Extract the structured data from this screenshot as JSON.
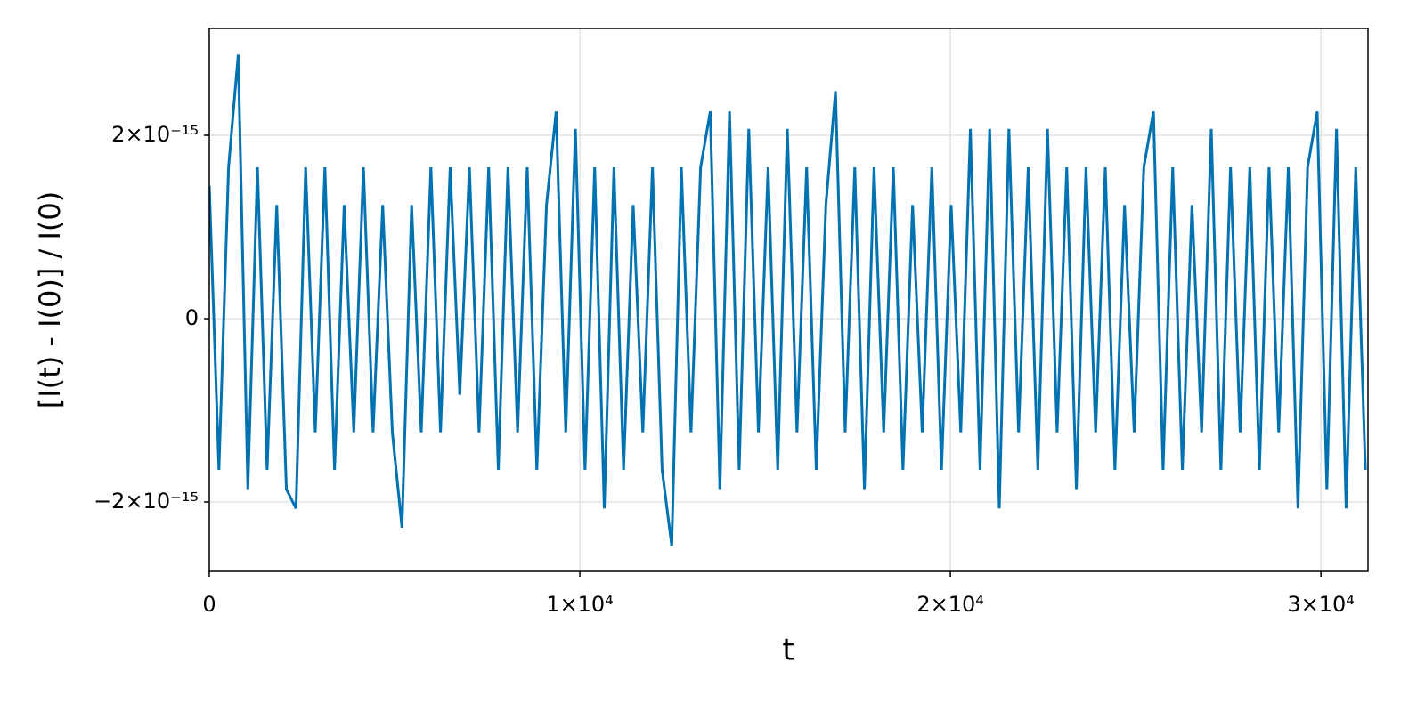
{
  "chart_data": {
    "type": "line",
    "x_label": "t",
    "y_label": "[I(t) - I(0)] / I(0)",
    "color": "#0072b2",
    "grid": true,
    "xlim": [
      0,
      31270
    ],
    "ylim": [
      -2.757e-15,
      3.165e-15
    ],
    "xticks": [
      0,
      {
        "value": 10000,
        "label": "1×10⁴"
      },
      {
        "value": 20000,
        "label": "2×10⁴"
      },
      {
        "value": 30000,
        "label": "3×10⁴"
      }
    ],
    "yticks": [
      {
        "value": -2e-15,
        "label": "−2×10⁻¹⁵"
      },
      0,
      {
        "value": 2e-15,
        "label": "2×10⁻¹⁵"
      }
    ],
    "x": [
      0,
      260,
      520,
      780,
      1040,
      1300,
      1560,
      1820,
      2080,
      2340,
      2600,
      2860,
      3120,
      3380,
      3640,
      3900,
      4160,
      4420,
      4680,
      4940,
      5200,
      5460,
      5720,
      5980,
      6240,
      6500,
      6760,
      7020,
      7280,
      7540,
      7800,
      8060,
      8320,
      8580,
      8840,
      9100,
      9360,
      9620,
      9880,
      10140,
      10400,
      10660,
      10920,
      11180,
      11440,
      11700,
      11960,
      12220,
      12480,
      12740,
      13000,
      13260,
      13520,
      13780,
      14040,
      14300,
      14560,
      14820,
      15080,
      15340,
      15600,
      15860,
      16120,
      16380,
      16640,
      16900,
      17160,
      17420,
      17680,
      17940,
      18200,
      18460,
      18720,
      18980,
      19240,
      19500,
      19760,
      20020,
      20280,
      20540,
      20800,
      21060,
      21320,
      21580,
      21840,
      22100,
      22360,
      22620,
      22880,
      23140,
      23400,
      23660,
      23920,
      24180,
      24440,
      24700,
      24960,
      25220,
      25480,
      25740,
      26000,
      26260,
      26520,
      26780,
      27040,
      27300,
      27560,
      27820,
      28080,
      28340,
      28600,
      28860,
      29120,
      29380,
      29640,
      29900,
      30160,
      30420,
      30680,
      30940,
      31200
    ],
    "values": [
      1.45e-15,
      -1.65e-15,
      1.65e-15,
      2.88e-15,
      -1.86e-15,
      1.65e-15,
      -1.65e-15,
      1.24e-15,
      -1.86e-15,
      -2.07e-15,
      1.65e-15,
      -1.24e-15,
      1.65e-15,
      -1.65e-15,
      1.24e-15,
      -1.24e-15,
      1.65e-15,
      -1.24e-15,
      1.24e-15,
      -1.24e-15,
      -2.28e-15,
      1.24e-15,
      -1.24e-15,
      1.65e-15,
      -1.24e-15,
      1.65e-15,
      -8.3e-16,
      1.65e-15,
      -1.24e-15,
      1.65e-15,
      -1.65e-15,
      1.65e-15,
      -1.24e-15,
      1.65e-15,
      -1.65e-15,
      1.24e-15,
      2.26e-15,
      -1.24e-15,
      2.07e-15,
      -1.65e-15,
      1.65e-15,
      -2.07e-15,
      1.65e-15,
      -1.65e-15,
      1.24e-15,
      -1.24e-15,
      1.65e-15,
      -1.65e-15,
      -2.48e-15,
      1.65e-15,
      -1.24e-15,
      1.65e-15,
      2.26e-15,
      -1.86e-15,
      2.26e-15,
      -1.65e-15,
      2.07e-15,
      -1.24e-15,
      1.65e-15,
      -1.65e-15,
      2.07e-15,
      -1.24e-15,
      1.65e-15,
      -1.65e-15,
      1.24e-15,
      2.48e-15,
      -1.24e-15,
      1.65e-15,
      -1.86e-15,
      1.65e-15,
      -1.24e-15,
      1.65e-15,
      -1.65e-15,
      1.24e-15,
      -1.24e-15,
      1.65e-15,
      -1.65e-15,
      1.24e-15,
      -1.24e-15,
      2.07e-15,
      -1.65e-15,
      2.07e-15,
      -2.07e-15,
      2.07e-15,
      -1.24e-15,
      1.65e-15,
      -1.65e-15,
      2.07e-15,
      -1.24e-15,
      1.65e-15,
      -1.86e-15,
      1.65e-15,
      -1.24e-15,
      1.65e-15,
      -1.65e-15,
      1.24e-15,
      -1.24e-15,
      1.65e-15,
      2.26e-15,
      -1.65e-15,
      1.65e-15,
      -1.65e-15,
      1.24e-15,
      -1.24e-15,
      2.07e-15,
      -1.65e-15,
      1.65e-15,
      -1.24e-15,
      1.65e-15,
      -1.65e-15,
      1.65e-15,
      -1.24e-15,
      1.65e-15,
      -2.07e-15,
      1.65e-15,
      2.26e-15,
      -1.86e-15,
      2.07e-15,
      -2.07e-15,
      1.65e-15,
      -1.65e-15
    ]
  }
}
